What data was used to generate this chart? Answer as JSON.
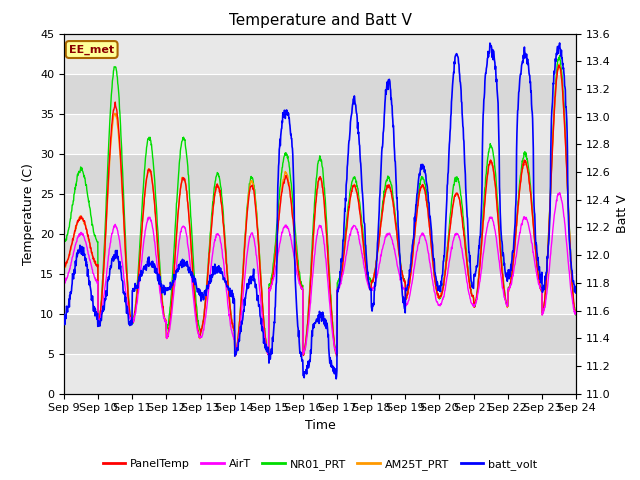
{
  "title": "Temperature and Batt V",
  "xlabel": "Time",
  "ylabel_left": "Temperature (C)",
  "ylabel_right": "Batt V",
  "annotation": "EE_met",
  "ylim_left": [
    0,
    45
  ],
  "ylim_right": [
    11.0,
    13.6
  ],
  "x_ticks": [
    "Sep 9",
    "Sep 10",
    "Sep 11",
    "Sep 12",
    "Sep 13",
    "Sep 14",
    "Sep 15",
    "Sep 16",
    "Sep 17",
    "Sep 18",
    "Sep 19",
    "Sep 20",
    "Sep 21",
    "Sep 22",
    "Sep 23",
    "Sep 24"
  ],
  "yticks_left": [
    0,
    5,
    10,
    15,
    20,
    25,
    30,
    35,
    40,
    45
  ],
  "yticks_right": [
    11.0,
    11.2,
    11.4,
    11.6,
    11.8,
    12.0,
    12.2,
    12.4,
    12.6,
    12.8,
    13.0,
    13.2,
    13.4,
    13.6
  ],
  "colors": {
    "PanelTemp": "#ff0000",
    "AirT": "#ff00ff",
    "NR01_PRT": "#00dd00",
    "AM25T_PRT": "#ff9900",
    "batt_volt": "#0000ff"
  },
  "legend_entries": [
    "PanelTemp",
    "AirT",
    "NR01_PRT",
    "AM25T_PRT",
    "batt_volt"
  ],
  "background_color": "#ffffff",
  "title_fontsize": 11,
  "axis_fontsize": 9,
  "tick_fontsize": 8,
  "band_colors": [
    "#e8e8e8",
    "#d8d8d8"
  ]
}
